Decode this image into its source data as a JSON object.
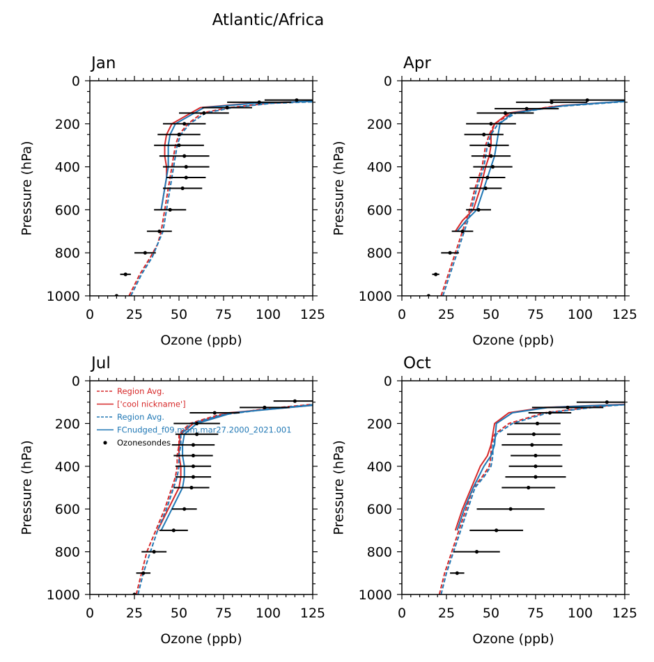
{
  "figure": {
    "title": "Atlantic/Africa"
  },
  "axes_common": {
    "xlabel": "Ozone (ppb)",
    "ylabel": "Pressure (hPa)",
    "xlim": [
      0,
      125
    ],
    "ylim": [
      1000,
      0
    ],
    "xticks": [
      0,
      25,
      50,
      75,
      100,
      125
    ],
    "yticks": [
      0,
      200,
      400,
      600,
      800,
      1000
    ],
    "xtick_labels": [
      "0",
      "25",
      "50",
      "75",
      "100",
      "125"
    ],
    "ytick_labels": [
      "0",
      "200",
      "400",
      "600",
      "800",
      "1000"
    ]
  },
  "legend": {
    "placement": "upper-left, inside Jul panel",
    "entries": [
      {
        "label": "Region Avg.",
        "style": "dashed",
        "color": "#d62728"
      },
      {
        "label": "['cool nickname']",
        "style": "solid",
        "color": "#d62728"
      },
      {
        "label": "Region Avg.",
        "style": "dashed",
        "color": "#1f77b4"
      },
      {
        "label": "FCnudged_f09.mam.mar27.2000_2021.001",
        "style": "solid",
        "color": "#1f77b4"
      },
      {
        "label": "Ozonesondes",
        "style": "marker",
        "color": "#000000"
      }
    ]
  },
  "chart_data": [
    {
      "type": "line",
      "panel_title": "Jan",
      "xlabel": "Ozone (ppb)",
      "ylabel": "Pressure (hPa)",
      "xlim": [
        0,
        125
      ],
      "ylim": [
        1000,
        0
      ],
      "series": [
        {
          "name": "Region Avg.",
          "color": "#d62728",
          "dash": true,
          "x": [
            22,
            28,
            34,
            38,
            40,
            42,
            44,
            46,
            47,
            48,
            50,
            55,
            63,
            78,
            100,
            125
          ],
          "y": [
            1000,
            900,
            820,
            760,
            700,
            600,
            500,
            400,
            350,
            300,
            250,
            200,
            150,
            125,
            105,
            95
          ]
        },
        {
          "name": "['cool nickname']",
          "color": "#d62728",
          "dash": false,
          "x": [
            40,
            42,
            43,
            43,
            42,
            42,
            43,
            46,
            62,
            90,
            125
          ],
          "y": [
            600,
            500,
            450,
            400,
            350,
            300,
            250,
            200,
            125,
            105,
            95
          ]
        },
        {
          "name": "Region Avg.",
          "color": "#1f77b4",
          "dash": true,
          "x": [
            23,
            29,
            35,
            38,
            41,
            43,
            45,
            47,
            48,
            49,
            51,
            56,
            65,
            80,
            102,
            125
          ],
          "y": [
            1000,
            900,
            820,
            760,
            700,
            600,
            500,
            400,
            350,
            300,
            250,
            200,
            150,
            125,
            105,
            98
          ]
        },
        {
          "name": "FCnudged_f09.mam.mar27.2000_2021.001",
          "color": "#1f77b4",
          "dash": false,
          "x": [
            40,
            42,
            43,
            44,
            44,
            44,
            45,
            48,
            64,
            92,
            125
          ],
          "y": [
            600,
            500,
            450,
            400,
            350,
            300,
            250,
            200,
            125,
            105,
            95
          ]
        }
      ],
      "sondes": {
        "pressure": [
          90,
          100,
          125,
          150,
          200,
          250,
          300,
          350,
          400,
          450,
          500,
          600,
          700,
          800,
          900,
          1000
        ],
        "mean": [
          116,
          95,
          77,
          64,
          53,
          50,
          50,
          53,
          54,
          54,
          52,
          45,
          39,
          31,
          20,
          15
        ],
        "xerr": [
          18,
          18,
          14,
          14,
          12,
          12,
          14,
          14,
          13,
          11,
          11,
          9,
          7,
          6,
          3,
          0
        ]
      }
    },
    {
      "type": "line",
      "panel_title": "Apr",
      "xlabel": "Ozone (ppb)",
      "ylabel": "Pressure (hPa)",
      "xlim": [
        0,
        125
      ],
      "ylim": [
        1000,
        0
      ],
      "series": [
        {
          "name": "Region Avg.",
          "color": "#d62728",
          "dash": true,
          "x": [
            22,
            26,
            30,
            34,
            38,
            41,
            43,
            45,
            46,
            47,
            49,
            52,
            62,
            84,
            125
          ],
          "y": [
            1000,
            900,
            800,
            700,
            600,
            500,
            450,
            400,
            350,
            300,
            250,
            200,
            150,
            120,
            95
          ]
        },
        {
          "name": "['cool nickname']",
          "color": "#d62728",
          "dash": false,
          "x": [
            30,
            34,
            40,
            44,
            47,
            49,
            50,
            50,
            52,
            60,
            90,
            125
          ],
          "y": [
            700,
            650,
            600,
            500,
            400,
            350,
            300,
            250,
            200,
            150,
            115,
            95
          ]
        },
        {
          "name": "Region Avg.",
          "color": "#1f77b4",
          "dash": true,
          "x": [
            23,
            27,
            31,
            35,
            39,
            42,
            44,
            46,
            47,
            48,
            50,
            54,
            64,
            87,
            125
          ],
          "y": [
            1000,
            900,
            800,
            700,
            600,
            500,
            450,
            400,
            350,
            300,
            250,
            200,
            150,
            120,
            97
          ]
        },
        {
          "name": "FCnudged_f09.mam.mar27.2000_2021.001",
          "color": "#1f77b4",
          "dash": false,
          "x": [
            31,
            36,
            42,
            46,
            50,
            52,
            53,
            54,
            55,
            62,
            92,
            125
          ],
          "y": [
            700,
            650,
            600,
            500,
            400,
            350,
            300,
            250,
            200,
            150,
            115,
            95
          ]
        }
      ],
      "sondes": {
        "pressure": [
          90,
          100,
          130,
          150,
          200,
          250,
          300,
          350,
          400,
          450,
          500,
          600,
          700,
          800,
          900,
          1000
        ],
        "mean": [
          104,
          84,
          70,
          58,
          50,
          46,
          49,
          50,
          51,
          48,
          47,
          43,
          34,
          27,
          19,
          15
        ],
        "xerr": [
          21,
          20,
          18,
          16,
          14,
          11,
          11,
          11,
          11,
          10,
          9,
          7,
          6,
          5,
          2,
          0
        ]
      }
    },
    {
      "type": "line",
      "panel_title": "Jul",
      "xlabel": "Ozone (ppb)",
      "ylabel": "Pressure (hPa)",
      "xlim": [
        0,
        125
      ],
      "ylim": [
        1000,
        0
      ],
      "series": [
        {
          "name": "Region Avg.",
          "color": "#d62728",
          "dash": true,
          "x": [
            26,
            29,
            32,
            37,
            42,
            46,
            48,
            49,
            49,
            50,
            50,
            56,
            72,
            100,
            125
          ],
          "y": [
            1000,
            900,
            800,
            700,
            600,
            500,
            450,
            400,
            350,
            300,
            250,
            200,
            160,
            130,
            110
          ]
        },
        {
          "name": "['cool nickname']",
          "color": "#d62728",
          "dash": false,
          "x": [
            38,
            44,
            50,
            51,
            51,
            50,
            50,
            51,
            58,
            78,
            125
          ],
          "y": [
            700,
            600,
            500,
            450,
            400,
            350,
            300,
            250,
            200,
            150,
            115
          ]
        },
        {
          "name": "Region Avg.",
          "color": "#1f77b4",
          "dash": true,
          "x": [
            27,
            30,
            34,
            38,
            43,
            47,
            49,
            50,
            50,
            51,
            51,
            57,
            74,
            102,
            125
          ],
          "y": [
            1000,
            900,
            800,
            700,
            600,
            500,
            450,
            400,
            350,
            300,
            250,
            200,
            160,
            130,
            112
          ]
        },
        {
          "name": "FCnudged_f09.mam.mar27.2000_2021.001",
          "color": "#1f77b4",
          "dash": false,
          "x": [
            40,
            46,
            52,
            53,
            53,
            52,
            52,
            53,
            60,
            80,
            125
          ],
          "y": [
            700,
            600,
            500,
            450,
            400,
            350,
            300,
            250,
            200,
            150,
            115
          ]
        }
      ],
      "sondes": {
        "pressure": [
          95,
          125,
          150,
          200,
          250,
          300,
          350,
          400,
          450,
          500,
          600,
          700,
          800,
          900,
          1000
        ],
        "mean": [
          115,
          98,
          70,
          60,
          60,
          58,
          58,
          58,
          58,
          57,
          53,
          47,
          36,
          30,
          25
        ],
        "xerr": [
          12,
          14,
          14,
          13,
          12,
          12,
          11,
          10,
          10,
          10,
          7,
          8,
          7,
          4,
          0
        ]
      }
    },
    {
      "type": "line",
      "panel_title": "Oct",
      "xlabel": "Ozone (ppb)",
      "ylabel": "Pressure (hPa)",
      "xlim": [
        0,
        125
      ],
      "ylim": [
        1000,
        0
      ],
      "series": [
        {
          "name": "Region Avg.",
          "color": "#d62728",
          "dash": true,
          "x": [
            21,
            24,
            28,
            32,
            36,
            40,
            45,
            49,
            50,
            50,
            52,
            60,
            80,
            110,
            125
          ],
          "y": [
            1000,
            900,
            800,
            700,
            600,
            500,
            450,
            400,
            350,
            300,
            250,
            200,
            150,
            120,
            110
          ]
        },
        {
          "name": "['cool nickname']",
          "color": "#d62728",
          "dash": false,
          "x": [
            30,
            34,
            39,
            44,
            48,
            50,
            52,
            60,
            80,
            110,
            125
          ],
          "y": [
            700,
            600,
            500,
            400,
            350,
            300,
            200,
            150,
            125,
            115,
            110
          ]
        },
        {
          "name": "Region Avg.",
          "color": "#1f77b4",
          "dash": true,
          "x": [
            22,
            25,
            29,
            33,
            37,
            41,
            46,
            50,
            51,
            51,
            53,
            62,
            82,
            112,
            125
          ],
          "y": [
            1000,
            900,
            800,
            700,
            600,
            500,
            450,
            400,
            350,
            300,
            250,
            200,
            150,
            120,
            112
          ]
        },
        {
          "name": "FCnudged_f09.mam.mar27.2000_2021.001",
          "color": "#1f77b4",
          "dash": false,
          "x": [
            31,
            35,
            40,
            46,
            50,
            52,
            53,
            62,
            82,
            112,
            125
          ],
          "y": [
            700,
            600,
            500,
            400,
            350,
            300,
            200,
            150,
            125,
            115,
            112
          ]
        }
      ],
      "sondes": {
        "pressure": [
          100,
          125,
          150,
          200,
          250,
          300,
          350,
          400,
          450,
          500,
          600,
          700,
          800,
          900
        ],
        "mean": [
          115,
          93,
          83,
          76,
          74,
          73,
          75,
          75,
          75,
          71,
          61,
          53,
          42,
          31
        ],
        "xerr": [
          17,
          20,
          12,
          13,
          15,
          17,
          14,
          15,
          17,
          15,
          19,
          15,
          13,
          4
        ]
      }
    }
  ]
}
